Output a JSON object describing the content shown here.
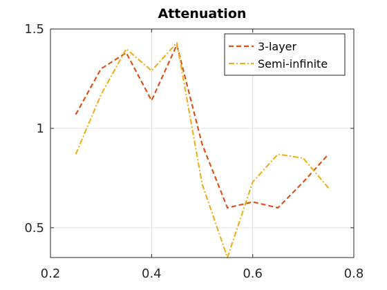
{
  "chart_data": {
    "type": "line",
    "title": "Attenuation",
    "xlabel": "",
    "ylabel": "",
    "xlim": [
      0.2,
      0.8
    ],
    "ylim": [
      0.35,
      1.5
    ],
    "xticks": [
      0.2,
      0.4,
      0.6,
      0.8
    ],
    "xtick_labels": [
      "0.2",
      "0.4",
      "0.6",
      "0.8"
    ],
    "yticks": [
      0.5,
      1,
      1.5
    ],
    "ytick_labels": [
      "0.5",
      "1",
      "1.5"
    ],
    "grid": true,
    "legend_position": "top-right",
    "x": [
      0.25,
      0.3,
      0.35,
      0.4,
      0.45,
      0.5,
      0.55,
      0.6,
      0.65,
      0.7,
      0.75
    ],
    "series": [
      {
        "name": "3-layer",
        "color": "#d95319",
        "style": "dashed",
        "values": [
          1.07,
          1.3,
          1.38,
          1.14,
          1.42,
          0.92,
          0.6,
          0.63,
          0.6,
          0.73,
          0.87
        ]
      },
      {
        "name": "Semi-infinite",
        "color": "#edb120",
        "style": "dash-dot",
        "values": [
          0.87,
          1.17,
          1.4,
          1.29,
          1.43,
          0.72,
          0.35,
          0.73,
          0.87,
          0.85,
          0.7
        ]
      }
    ]
  }
}
